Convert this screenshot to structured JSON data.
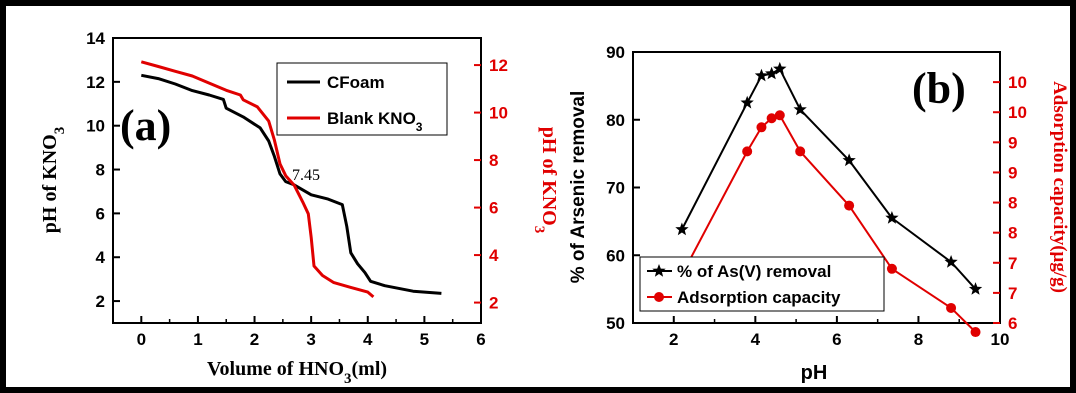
{
  "chart_data": [
    {
      "type": "line",
      "panel_label": "(a)",
      "xlabel": "Volume of HNO3(ml)",
      "ylabel": "pH of KNO3",
      "ylabel_right": "pH of KNO3",
      "xlim": [
        -0.5,
        6
      ],
      "ylim": [
        1,
        14
      ],
      "ylim_right": [
        1.14,
        13.14
      ],
      "x_ticks": [
        "0",
        "1",
        "2",
        "3",
        "4",
        "5",
        "6"
      ],
      "y_ticks": [
        "2",
        "4",
        "6",
        "8",
        "10",
        "12",
        "14"
      ],
      "y_ticks_right": [
        "2",
        "4",
        "6",
        "8",
        "10",
        "12"
      ],
      "legend_position": "top-right",
      "annotation": "7.45",
      "series": [
        {
          "name": "CFoam",
          "color": "#000000",
          "axis": "left",
          "points": [
            [
              0,
              12.3
            ],
            [
              0.3,
              12.15
            ],
            [
              0.6,
              11.9
            ],
            [
              0.9,
              11.6
            ],
            [
              1.2,
              11.4
            ],
            [
              1.45,
              11.2
            ],
            [
              1.5,
              10.8
            ],
            [
              1.8,
              10.4
            ],
            [
              2.1,
              9.9
            ],
            [
              2.25,
              9.3
            ],
            [
              2.35,
              8.6
            ],
            [
              2.45,
              7.8
            ],
            [
              2.55,
              7.45
            ],
            [
              2.7,
              7.3
            ],
            [
              3.0,
              6.85
            ],
            [
              3.3,
              6.65
            ],
            [
              3.55,
              6.4
            ],
            [
              3.63,
              5.4
            ],
            [
              3.7,
              4.2
            ],
            [
              3.82,
              3.7
            ],
            [
              3.95,
              3.3
            ],
            [
              4.05,
              2.9
            ],
            [
              4.3,
              2.7
            ],
            [
              4.8,
              2.45
            ],
            [
              5.3,
              2.35
            ]
          ]
        },
        {
          "name": "Blank KNO3",
          "color": "#e00000",
          "axis": "right",
          "points": [
            [
              0,
              12.14
            ],
            [
              0.3,
              11.94
            ],
            [
              0.6,
              11.74
            ],
            [
              0.9,
              11.54
            ],
            [
              1.2,
              11.24
            ],
            [
              1.5,
              10.94
            ],
            [
              1.75,
              10.74
            ],
            [
              1.8,
              10.54
            ],
            [
              2.05,
              10.24
            ],
            [
              2.25,
              9.64
            ],
            [
              2.35,
              8.84
            ],
            [
              2.45,
              7.84
            ],
            [
              2.55,
              7.34
            ],
            [
              2.7,
              6.94
            ],
            [
              2.85,
              6.24
            ],
            [
              2.95,
              5.74
            ],
            [
              3.0,
              4.74
            ],
            [
              3.05,
              3.54
            ],
            [
              3.2,
              3.14
            ],
            [
              3.4,
              2.84
            ],
            [
              3.7,
              2.64
            ],
            [
              4.0,
              2.44
            ],
            [
              4.1,
              2.24
            ]
          ]
        }
      ]
    },
    {
      "type": "line",
      "panel_label": "(b)",
      "xlabel": "pH",
      "ylabel": "% of Arsenic removal",
      "ylabel_right": "Adsorption capacity(μg/g)",
      "xlim": [
        1,
        10
      ],
      "ylim": [
        50,
        90
      ],
      "ylim_right": [
        6.0,
        10.5
      ],
      "x_ticks": [
        "2",
        "4",
        "6",
        "8",
        "10"
      ],
      "y_ticks": [
        "50",
        "60",
        "70",
        "80",
        "90"
      ],
      "y_ticks_right": [
        "6",
        "7",
        "7",
        "8",
        "8",
        "9",
        "9",
        "10",
        "10"
      ],
      "legend_position": "bottom-left",
      "series": [
        {
          "name": "% of As(V) removal",
          "color": "#000000",
          "marker": "star",
          "x": [
            2.2,
            3.8,
            4.15,
            4.4,
            4.6,
            5.1,
            6.3,
            7.35,
            8.8,
            9.4
          ],
          "values": [
            63.8,
            82.5,
            86.5,
            86.8,
            87.5,
            81.5,
            74.0,
            65.5,
            59.0,
            55.0
          ]
        },
        {
          "name": "Adsorption capacity",
          "color": "#e00000",
          "marker": "circle",
          "x": [
            2.2,
            3.8,
            4.15,
            4.4,
            4.6,
            5.1,
            6.3,
            7.35,
            8.8,
            9.4
          ],
          "values": [
            6.8,
            8.85,
            9.25,
            9.4,
            9.45,
            8.85,
            7.95,
            6.9,
            6.25,
            5.85
          ]
        }
      ]
    }
  ]
}
